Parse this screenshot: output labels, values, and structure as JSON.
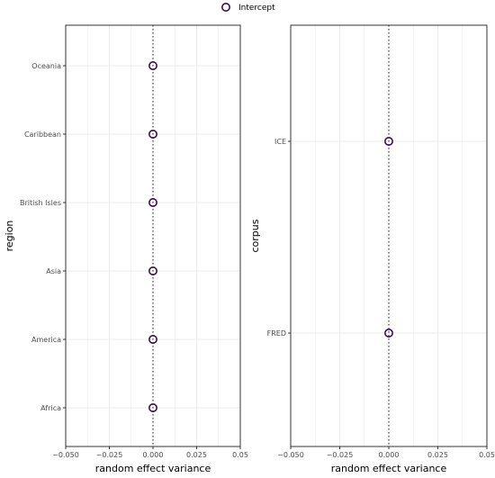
{
  "legend": {
    "label": "Intercept"
  },
  "colors": {
    "point_stroke": "#3b0f4f",
    "grid": "#ebebeb",
    "panel_border": "#333333",
    "zero_line": "#333333"
  },
  "chart_data": [
    {
      "type": "scatter",
      "xlabel": "random effect variance",
      "ylabel": "region",
      "xlim": [
        -0.05,
        0.05
      ],
      "xticks": [
        "−0.050",
        "−0.025",
        "0.000",
        "0.025",
        "0.05"
      ],
      "categories": [
        "Africa",
        "America",
        "Asia",
        "British Isles",
        "Caribbean",
        "Oceania"
      ],
      "series": [
        {
          "name": "Intercept",
          "values": [
            0,
            0,
            0,
            0,
            0,
            0
          ]
        }
      ],
      "reference_line_x": 0,
      "grid": true
    },
    {
      "type": "scatter",
      "xlabel": "random effect variance",
      "ylabel": "corpus",
      "xlim": [
        -0.05,
        0.05
      ],
      "xticks": [
        "−0.050",
        "−0.025",
        "0.000",
        "0.025",
        "0.05"
      ],
      "categories": [
        "FRED",
        "ICE"
      ],
      "series": [
        {
          "name": "Intercept",
          "values": [
            0,
            0
          ]
        }
      ],
      "reference_line_x": 0,
      "grid": true
    }
  ]
}
